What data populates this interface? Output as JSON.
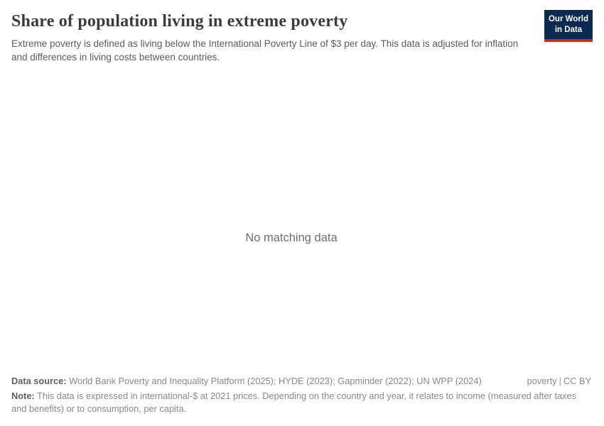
{
  "header": {
    "title": "Share of population living in extreme poverty",
    "subtitle": "Extreme poverty is defined as living below the International Poverty Line of $3 per day. This data is adjusted for inflation and differences in living costs between countries.",
    "logo": {
      "line1": "Our World",
      "line2": "in Data"
    }
  },
  "main": {
    "empty_message": "No matching data"
  },
  "footer": {
    "data_source_label": "Data source:",
    "data_source_value": "World Bank Poverty and Inequality Platform (2025); HYDE (2023); Gapminder (2022); UN WPP (2024)",
    "link_label": "poverty",
    "separator": "|",
    "license": "CC BY",
    "note_label": "Note:",
    "note_value": "This data is expressed in international-$ at 2021 prices. Depending on the country and year, it relates to income (measured after taxes and benefits) or to consumption, per capita."
  },
  "colors": {
    "logo_navy": "#0b2a51",
    "logo_red": "#c5301f",
    "title_text": "#3b3b3b",
    "subtitle_text": "#5b5b5b",
    "muted_text": "#888888",
    "empty_message_text": "#6e6e6e"
  },
  "chart_data": {
    "type": "empty",
    "title": "Share of population living in extreme poverty",
    "series": [],
    "message": "No matching data",
    "layout_hints": {
      "grid": false,
      "axes_visible": false,
      "legend": "none"
    }
  }
}
